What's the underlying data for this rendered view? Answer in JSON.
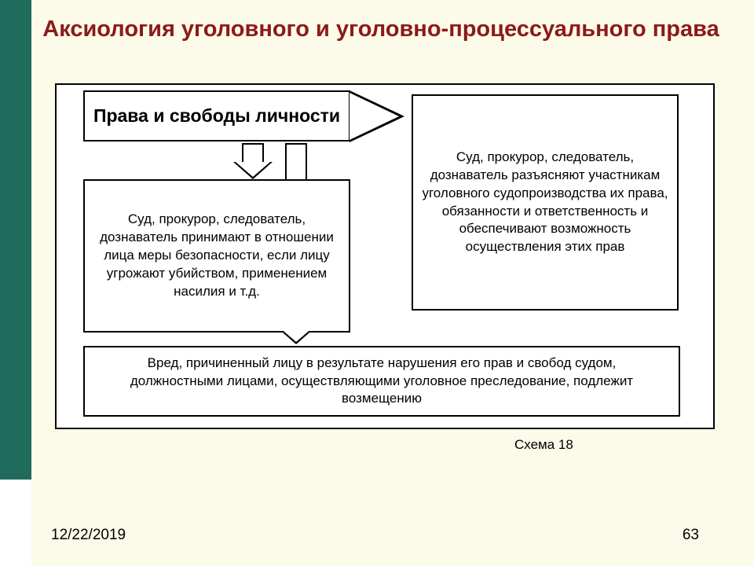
{
  "slide": {
    "title": "Аксиология уголовного и уголовно-процессуального права",
    "caption": "Схема 18",
    "date": "12/22/2019",
    "page_number": "63"
  },
  "diagram": {
    "type": "flowchart",
    "header": "Права и свободы личности",
    "box_left": "Суд, прокурор, следователь, дознаватель принимают в отношении лица меры безопасности, если лицу угрожают убийством, применением насилия и т.д.",
    "box_right": "Суд, прокурор, следователь, дознаватель разъясняют участникам уголовного судопроизводства их права, обязанности и ответственность и обеспечивают возможность осуществления этих прав",
    "box_bottom": "Вред, причиненный лицу в результате нарушения его прав и свобод судом, должностными лицами, осуществляющими уголовное преследование, подлежит возмещению"
  },
  "colors": {
    "sidebar": "#1f6b5c",
    "slide_bg": "#fcfae8",
    "title_color": "#8b1a1a",
    "box_border": "#000000",
    "box_bg": "#ffffff"
  },
  "typography": {
    "title_fontsize": 29,
    "header_fontsize": 23,
    "body_fontsize": 17,
    "footer_fontsize": 19
  }
}
